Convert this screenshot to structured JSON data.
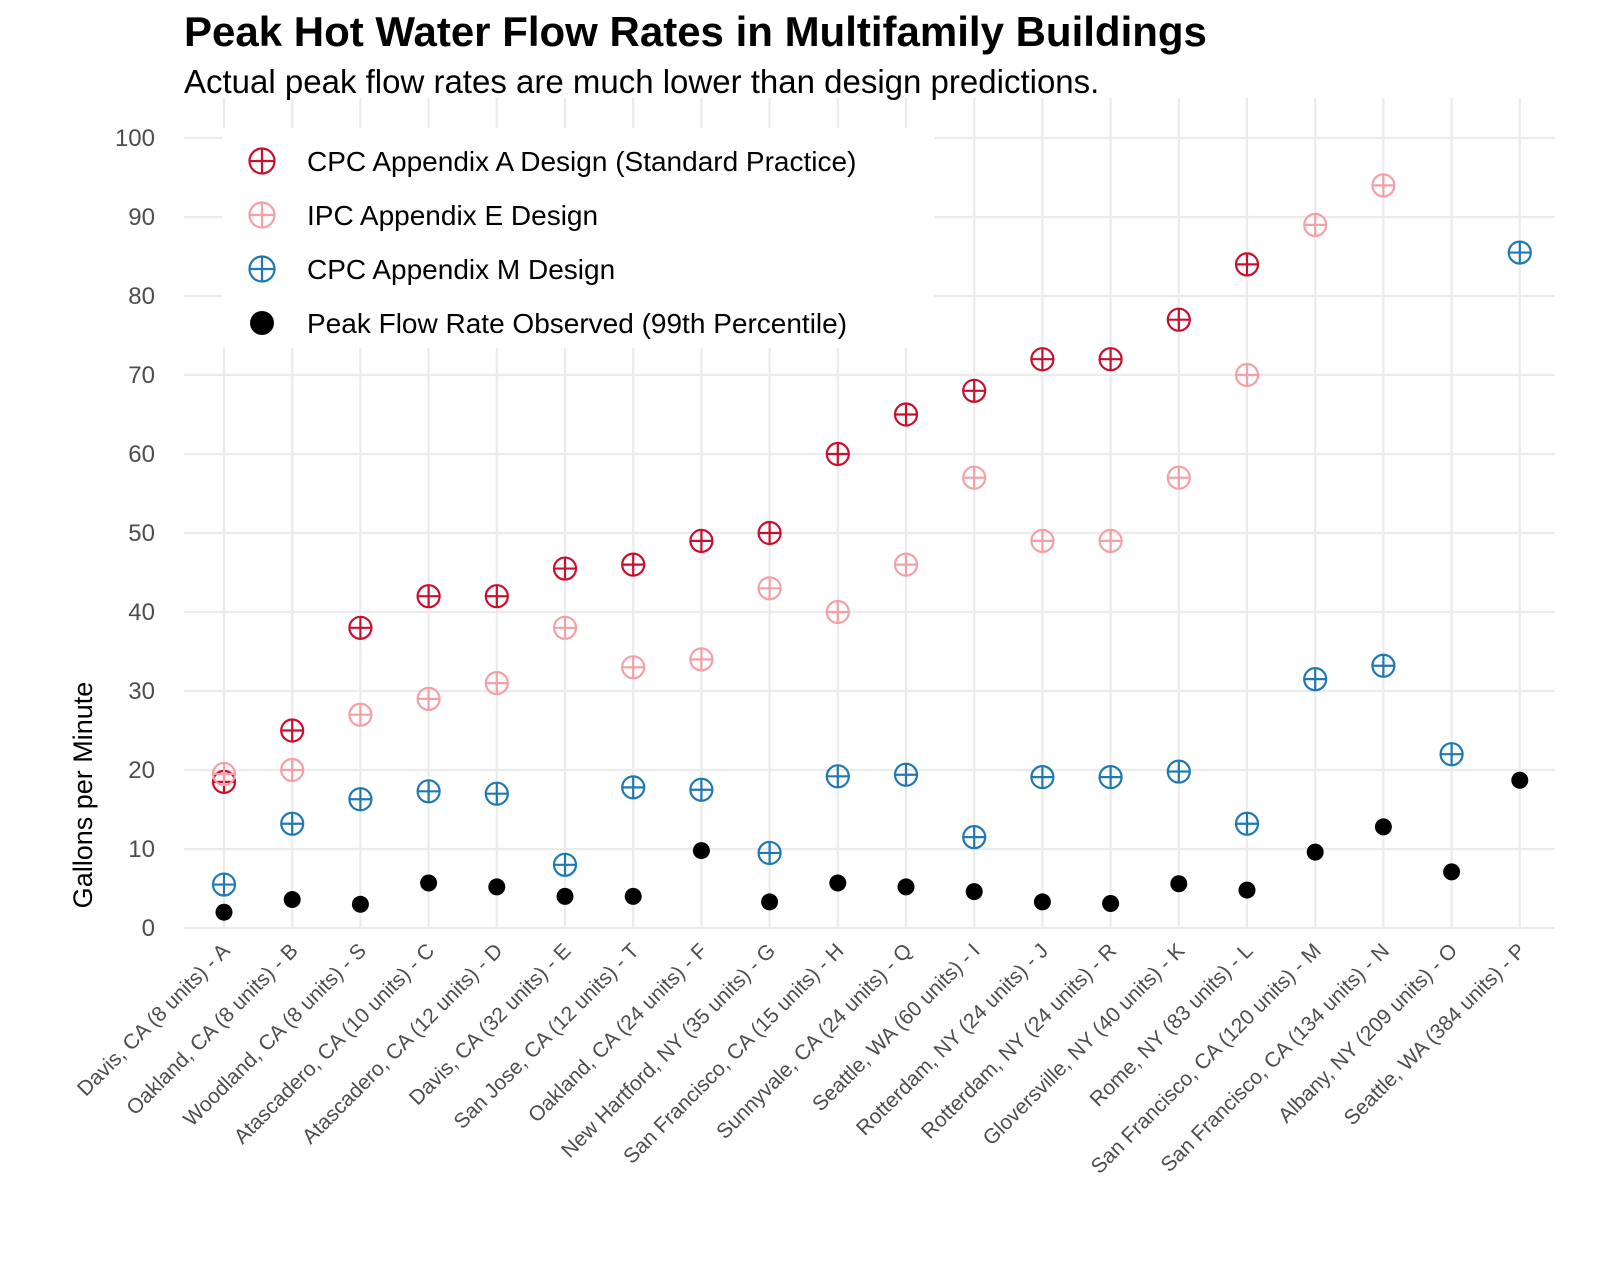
{
  "chart_data": {
    "type": "scatter",
    "title": "Peak Hot Water Flow Rates in Multifamily Buildings",
    "subtitle": "Actual peak flow rates are much lower than design predictions.",
    "xlabel": "",
    "ylabel": "Gallons per Minute",
    "ylim": [
      0,
      100
    ],
    "yticks": [
      0,
      10,
      20,
      30,
      40,
      50,
      60,
      70,
      80,
      90,
      100
    ],
    "grid": true,
    "legend_position": "top-left",
    "categories": [
      "Davis, CA (8 units) - A",
      "Oakland, CA (8 units) - B",
      "Woodland, CA (8 units) - S",
      "Atascadero, CA (10 units) - C",
      "Atascadero, CA (12 units) - D",
      "Davis, CA (32 units) - E",
      "San Jose, CA (12 units) - T",
      "Oakland, CA (24 units) - F",
      "New Hartford, NY  (35 units) - G",
      "San Francisco, CA (15 units) - H",
      "Sunnyvale, CA (24 units) - Q",
      "Seattle, WA (60 units) - I",
      "Rotterdam, NY (24 units) - J",
      "Rotterdam, NY (24 units) - R",
      "Gloversville, NY (40 units) - K",
      "Rome, NY (83 units) - L",
      "San Francisco, CA (120 units) - M",
      "San Francisco, CA (134 units) - N",
      "Albany, NY (209 units) - O",
      "Seattle, WA (384 units) - P"
    ],
    "series": [
      {
        "name": "CPC Appendix A Design (Standard Practice)",
        "marker": "circle-cross",
        "color": "#c8102e",
        "values": [
          18.5,
          25,
          38,
          42,
          42,
          45.5,
          46,
          49,
          50,
          60,
          65,
          68,
          72,
          72,
          77,
          84,
          null,
          null,
          null,
          null
        ]
      },
      {
        "name": "IPC Appendix E Design",
        "marker": "circle-cross",
        "color": "#f4a0a6",
        "values": [
          19.5,
          20,
          27,
          29,
          31,
          38,
          33,
          34,
          43,
          40,
          46,
          57,
          49,
          49,
          57,
          70,
          89,
          94,
          null,
          null
        ]
      },
      {
        "name": "CPC Appendix M Design",
        "marker": "circle-cross",
        "color": "#1f78b4",
        "values": [
          5.5,
          13.2,
          16.3,
          17.3,
          17,
          8,
          17.8,
          17.5,
          9.5,
          19.2,
          19.4,
          11.5,
          19.1,
          19.1,
          19.8,
          13.2,
          31.5,
          33.2,
          22,
          85.5
        ]
      },
      {
        "name": "Peak Flow Rate Observed (99th Percentile)",
        "marker": "dot",
        "color": "#000000",
        "values": [
          2,
          3.6,
          3,
          5.7,
          5.2,
          4,
          4,
          9.8,
          3.3,
          5.7,
          5.2,
          4.6,
          3.3,
          3.1,
          5.6,
          4.8,
          9.6,
          12.8,
          7.1,
          18.7
        ]
      }
    ]
  }
}
